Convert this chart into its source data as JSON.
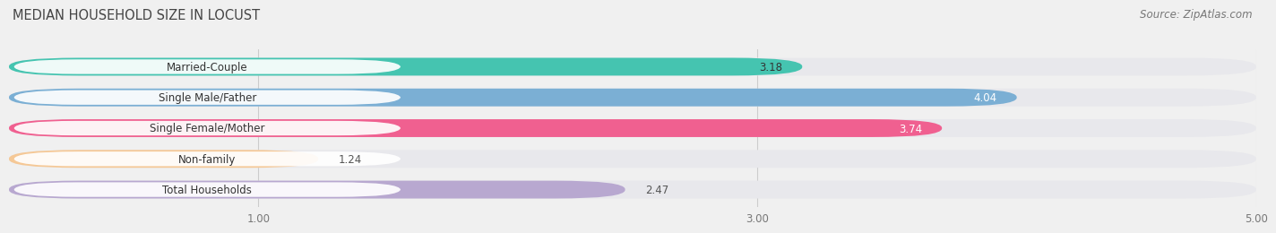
{
  "title": "MEDIAN HOUSEHOLD SIZE IN LOCUST",
  "source": "Source: ZipAtlas.com",
  "categories": [
    "Married-Couple",
    "Single Male/Father",
    "Single Female/Mother",
    "Non-family",
    "Total Households"
  ],
  "values": [
    3.18,
    4.04,
    3.74,
    1.24,
    2.47
  ],
  "bar_colors": [
    "#45c4b0",
    "#7bafd4",
    "#f06090",
    "#f5c896",
    "#b8a8d0"
  ],
  "background_color": "#f0f0f0",
  "bar_bg_color": "#e8e8ec",
  "xmin": 0.0,
  "xmax": 5.0,
  "xticks": [
    1.0,
    3.0,
    5.0
  ],
  "xtick_labels": [
    "1.00",
    "3.00",
    "5.00"
  ],
  "title_fontsize": 10.5,
  "label_fontsize": 8.5,
  "value_fontsize": 8.5,
  "source_fontsize": 8.5,
  "value_text_colors": [
    "#333333",
    "#ffffff",
    "#ffffff",
    "#333333",
    "#333333"
  ],
  "value_inside": [
    true,
    true,
    true,
    false,
    false
  ]
}
